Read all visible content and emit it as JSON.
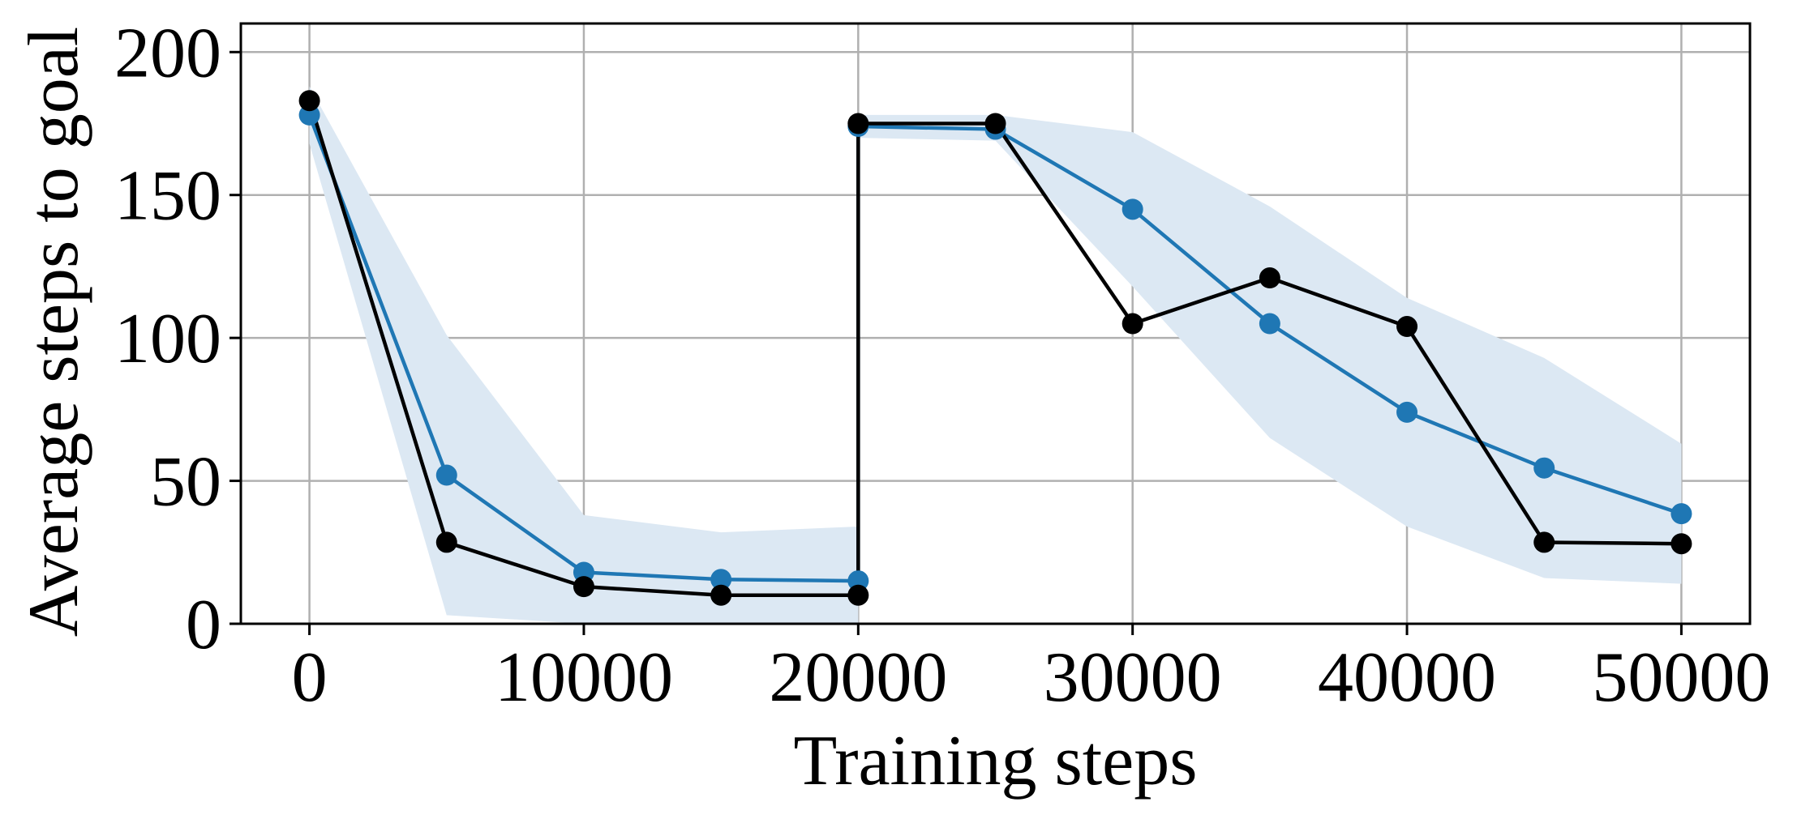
{
  "chart_data": {
    "type": "line",
    "xlabel": "Training steps",
    "ylabel": "Average steps to goal",
    "xlim": [
      -2500,
      52500
    ],
    "ylim": [
      0,
      210
    ],
    "xticks": [
      0,
      10000,
      20000,
      30000,
      40000,
      50000
    ],
    "yticks": [
      0,
      50,
      100,
      150,
      200
    ],
    "grid": true,
    "colors": {
      "blue": "#1f77b4",
      "band": "#dce8f3",
      "black": "#000000",
      "grid": "#b0b0b0"
    },
    "series": [
      {
        "color": "#1f77b4",
        "x": [
          0,
          5000,
          10000,
          15000,
          20000,
          20000,
          25000,
          30000,
          35000,
          40000,
          45000,
          50000
        ],
        "y": [
          178,
          52,
          18,
          15.5,
          15,
          174,
          173,
          145,
          105,
          74,
          54.5,
          38.5
        ]
      },
      {
        "color": "#000000",
        "x": [
          0,
          5000,
          10000,
          15000,
          20000,
          20000,
          25000,
          30000,
          35000,
          40000,
          45000,
          50000
        ],
        "y": [
          183,
          28.5,
          13,
          10,
          10,
          175,
          175,
          105,
          121,
          104,
          28.5,
          28
        ]
      }
    ],
    "band": {
      "x": [
        0,
        5000,
        10000,
        15000,
        20000,
        20000,
        25000,
        30000,
        35000,
        40000,
        45000,
        50000
      ],
      "lower": [
        168,
        3,
        0,
        0,
        0,
        170,
        169,
        118,
        65,
        34,
        16,
        14
      ],
      "upper": [
        188,
        101,
        38,
        32,
        34,
        178,
        178,
        172,
        146,
        114,
        93,
        63
      ]
    }
  }
}
